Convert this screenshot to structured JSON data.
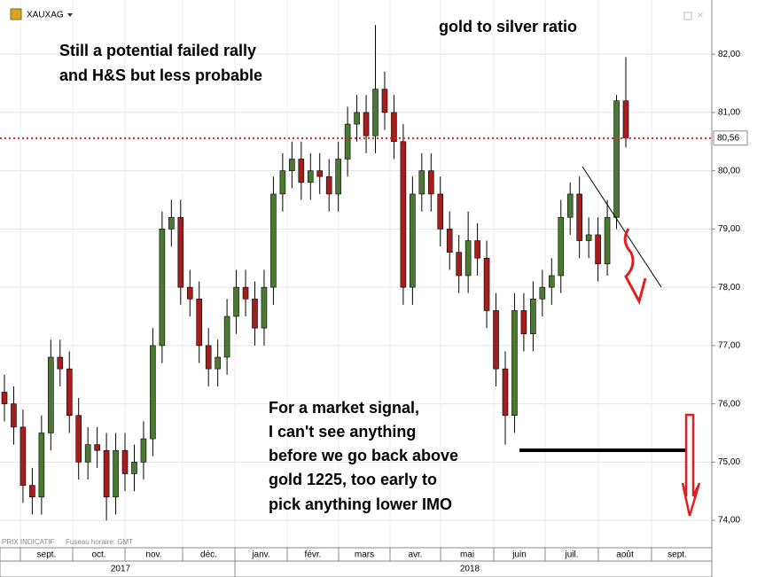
{
  "chart_data": {
    "type": "candlestick",
    "symbol": "XAUXAG",
    "footer": "PRIX INDICATIF",
    "timezone": "Fuseau horaire: GMT",
    "annotations": [
      "Still a potential failed rally",
      "and H&S but less probable",
      "gold to silver ratio",
      "For a market signal,",
      "I can't see anything",
      "before we go back above",
      "gold 1225, too early to",
      "pick anything lower IMO"
    ],
    "months": [
      "sept.",
      "oct.",
      "nov.",
      "déc.",
      "janv.",
      "févr.",
      "mars",
      "avr.",
      "mai",
      "juin",
      "juil.",
      "août",
      "sept."
    ],
    "years": [
      "2017",
      "2018"
    ],
    "up_color": "#4a7a32",
    "down_color": "#a51d1d",
    "ylim": [
      73.53,
      82.93
    ],
    "yticks": [
      {
        "value": 74,
        "label": "74,00"
      },
      {
        "value": 75,
        "label": "75,00"
      },
      {
        "value": 76,
        "label": "76,00"
      },
      {
        "value": 77,
        "label": "77,00"
      },
      {
        "value": 78,
        "label": "78,00"
      },
      {
        "value": 79,
        "label": "79,00"
      },
      {
        "value": 80,
        "label": "80,00"
      },
      {
        "value": 81,
        "label": "81,00"
      },
      {
        "value": 82,
        "label": "82,00"
      }
    ],
    "last_price": {
      "value": 80.56,
      "label": "80,56"
    },
    "open": [
      76.2,
      76.0,
      75.6,
      74.6,
      74.4,
      75.5,
      76.8,
      76.6,
      75.8,
      75.0,
      75.3,
      75.2,
      74.4,
      75.2,
      74.8,
      75.0,
      75.4,
      77.0,
      79.0,
      79.2,
      78.0,
      77.8,
      77.0,
      76.6,
      76.8,
      77.5,
      78.0,
      77.8,
      77.3,
      78.0,
      79.6,
      80.0,
      80.2,
      79.8,
      80.0,
      79.9,
      79.6,
      80.2,
      80.8,
      81.0,
      80.6,
      81.4,
      81.0,
      80.5,
      78.0,
      79.6,
      80.0,
      79.6,
      79.0,
      78.6,
      78.2,
      78.8,
      78.5,
      77.6,
      76.6,
      75.8,
      77.6,
      77.2,
      77.8,
      78.0,
      78.2,
      79.2,
      79.6,
      78.8,
      78.9,
      78.4,
      79.2,
      81.2
    ],
    "high": [
      76.5,
      76.3,
      75.9,
      74.9,
      75.8,
      77.1,
      77.1,
      76.9,
      76.1,
      75.6,
      75.6,
      75.5,
      75.5,
      75.5,
      75.3,
      75.7,
      77.3,
      79.3,
      79.5,
      79.5,
      78.3,
      78.1,
      77.3,
      77.1,
      77.8,
      78.3,
      78.3,
      78.1,
      78.3,
      79.9,
      80.3,
      80.5,
      80.5,
      80.3,
      80.3,
      80.2,
      80.5,
      81.1,
      81.3,
      81.3,
      82.5,
      81.7,
      81.3,
      80.8,
      79.9,
      80.3,
      80.3,
      79.9,
      79.3,
      78.9,
      79.3,
      79.1,
      78.8,
      77.9,
      76.9,
      77.9,
      77.9,
      78.1,
      78.3,
      78.5,
      79.5,
      79.8,
      79.9,
      79.2,
      79.2,
      79.5,
      81.3,
      81.95
    ],
    "low": [
      75.7,
      75.3,
      74.3,
      74.1,
      74.1,
      75.2,
      76.3,
      75.5,
      74.7,
      74.7,
      74.9,
      74.0,
      74.1,
      74.5,
      74.5,
      74.7,
      75.1,
      76.7,
      78.7,
      77.7,
      77.5,
      76.7,
      76.3,
      76.3,
      76.5,
      77.2,
      77.5,
      77.0,
      77.0,
      77.7,
      79.3,
      79.7,
      79.5,
      79.5,
      79.6,
      79.3,
      79.3,
      79.9,
      80.5,
      80.3,
      80.3,
      80.7,
      80.2,
      77.7,
      77.7,
      79.3,
      79.3,
      78.7,
      78.3,
      77.9,
      77.9,
      78.2,
      77.3,
      76.3,
      75.3,
      75.5,
      76.9,
      76.9,
      77.5,
      77.7,
      77.9,
      78.9,
      78.5,
      78.5,
      78.1,
      78.2,
      79.0,
      80.4
    ],
    "close": [
      76.0,
      75.6,
      74.6,
      74.4,
      75.5,
      76.8,
      76.6,
      75.8,
      75.0,
      75.3,
      75.2,
      74.4,
      75.2,
      74.8,
      75.0,
      75.4,
      77.0,
      79.0,
      79.2,
      78.0,
      77.8,
      77.0,
      76.6,
      76.8,
      77.5,
      78.0,
      77.8,
      77.3,
      78.0,
      79.6,
      80.0,
      80.2,
      79.8,
      80.0,
      79.9,
      79.6,
      80.2,
      80.8,
      81.0,
      80.6,
      81.4,
      81.0,
      80.5,
      78.0,
      79.6,
      80.0,
      79.6,
      79.0,
      78.6,
      78.2,
      78.8,
      78.5,
      77.6,
      76.6,
      75.8,
      77.6,
      77.2,
      77.8,
      78.0,
      78.2,
      79.2,
      79.6,
      78.8,
      78.9,
      78.4,
      79.2,
      81.2,
      80.56
    ],
    "grid": true
  }
}
